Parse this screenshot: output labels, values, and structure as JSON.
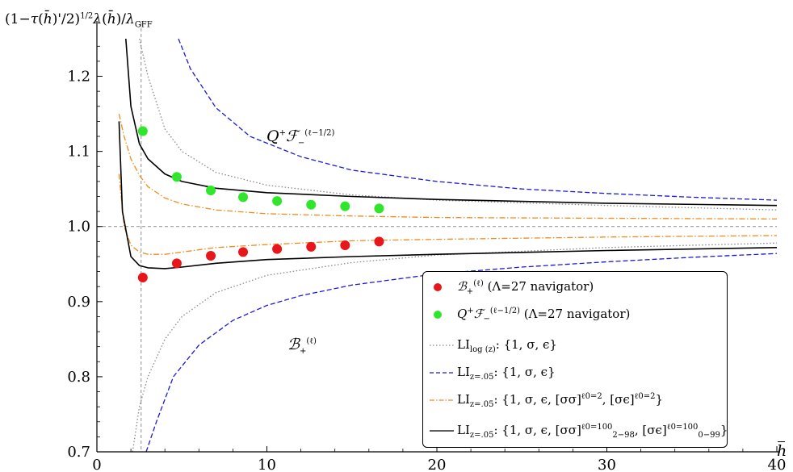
{
  "chart_data": {
    "type": "line",
    "xlabel": "h̄",
    "ylabel": "(1−τ(h̄)'/2)^1/2 λ(h̄)/λ_GFF",
    "xlim": [
      0,
      40
    ],
    "ylim": [
      0.7,
      1.25
    ],
    "x_ticks": [
      "0",
      "10",
      "20",
      "30",
      "40"
    ],
    "y_ticks": [
      "0.7",
      "0.8",
      "0.9",
      "1.0",
      "1.1",
      "1.2"
    ],
    "reference_lines": {
      "horizontal_y": 1.0,
      "vertical_x": 2.6
    },
    "legend_position": "bottom-right",
    "annotations": [
      {
        "text": "Q⁺ℱ₋^(ℓ−1/2)",
        "x": 12.5,
        "y": 1.105
      },
      {
        "text": "ℬ₊^(ℓ)",
        "x": 12.5,
        "y": 0.835
      }
    ],
    "series": [
      {
        "name": "ℬ₊^(ℓ) (Λ=27 navigator)",
        "style": "points",
        "color": "#e8151b",
        "x": [
          2.7,
          4.7,
          6.7,
          8.6,
          10.6,
          12.6,
          14.6,
          16.6
        ],
        "y": [
          0.932,
          0.951,
          0.961,
          0.966,
          0.97,
          0.973,
          0.975,
          0.98
        ]
      },
      {
        "name": "Q⁺ℱ₋^(ℓ−1/2) (Λ=27 navigator)",
        "style": "points",
        "color": "#2fe62a",
        "x": [
          2.7,
          4.7,
          6.7,
          8.6,
          10.6,
          12.6,
          14.6,
          16.6
        ],
        "y": [
          1.127,
          1.066,
          1.048,
          1.039,
          1.034,
          1.029,
          1.027,
          1.024
        ]
      },
      {
        "name": "LI_log(z): {1, σ, ϵ}",
        "style": "dotted",
        "color": "#888888",
        "upper": {
          "x": [
            2.5,
            3,
            4,
            5,
            7,
            10,
            15,
            20,
            30,
            40
          ],
          "y": [
            1.25,
            1.2,
            1.13,
            1.1,
            1.072,
            1.055,
            1.042,
            1.035,
            1.028,
            1.022
          ]
        },
        "lower": {
          "x": [
            2.1,
            2.5,
            3,
            4,
            5,
            7,
            10,
            15,
            20,
            30,
            40
          ],
          "y": [
            0.7,
            0.76,
            0.8,
            0.85,
            0.88,
            0.912,
            0.935,
            0.952,
            0.962,
            0.972,
            0.978
          ]
        }
      },
      {
        "name": "LI_z=.05: {1, σ, ϵ}",
        "style": "dashed",
        "color": "#1a1ad6",
        "upper": {
          "x": [
            4.8,
            5.5,
            7,
            9,
            12,
            15,
            20,
            25,
            30,
            35,
            40
          ],
          "y": [
            1.25,
            1.21,
            1.158,
            1.12,
            1.093,
            1.075,
            1.06,
            1.05,
            1.044,
            1.039,
            1.035
          ]
        },
        "lower": {
          "x": [
            2.9,
            3.5,
            4.5,
            6,
            8,
            10,
            12,
            15,
            20,
            25,
            30,
            35,
            40
          ],
          "y": [
            0.7,
            0.74,
            0.8,
            0.842,
            0.875,
            0.895,
            0.908,
            0.922,
            0.937,
            0.946,
            0.953,
            0.959,
            0.964
          ]
        }
      },
      {
        "name": "LI_z=.05: {1, σ, ϵ, [σσ]^ℓ0=2, [σϵ]^ℓ0=2}",
        "style": "dashdot",
        "color": "#f08c1c",
        "upper": {
          "x": [
            1.3,
            1.6,
            2,
            2.5,
            3,
            4,
            5,
            7,
            10,
            15,
            20,
            30,
            40
          ],
          "y": [
            1.15,
            1.12,
            1.09,
            1.068,
            1.053,
            1.038,
            1.03,
            1.022,
            1.017,
            1.014,
            1.012,
            1.011,
            1.01
          ]
        },
        "lower": {
          "x": [
            1.3,
            1.6,
            2,
            2.5,
            3,
            4,
            5,
            7,
            10,
            15,
            20,
            30,
            40
          ],
          "y": [
            1.07,
            1.0,
            0.975,
            0.966,
            0.963,
            0.963,
            0.966,
            0.972,
            0.976,
            0.981,
            0.983,
            0.986,
            0.988
          ]
        }
      },
      {
        "name": "LI_z=.05: {1, σ, ϵ, [σσ]^ℓ0=100_2−98, [σϵ]^ℓ0=100_0−99}",
        "style": "solid",
        "color": "#000000",
        "upper": {
          "x": [
            1.7,
            2,
            2.5,
            3,
            4,
            5,
            7,
            10,
            15,
            20,
            30,
            40
          ],
          "y": [
            1.25,
            1.16,
            1.11,
            1.09,
            1.07,
            1.06,
            1.051,
            1.045,
            1.04,
            1.036,
            1.031,
            1.028
          ]
        },
        "lower": {
          "x": [
            1.3,
            1.5,
            2,
            2.5,
            3,
            4,
            5,
            7,
            10,
            15,
            20,
            30,
            40
          ],
          "y": [
            1.14,
            1.02,
            0.96,
            0.948,
            0.945,
            0.944,
            0.946,
            0.951,
            0.956,
            0.96,
            0.963,
            0.968,
            0.972
          ]
        }
      }
    ]
  },
  "legend": [
    {
      "label": "(Λ=27 navigator)"
    },
    {
      "label": "(Λ=27 navigator)"
    },
    {
      "label": ": {1, σ, ϵ}"
    },
    {
      "label": ": {1, σ, ϵ}"
    },
    {
      "label": ": {1, σ, ϵ, [σσ]"
    },
    {
      "label": ": {1, σ, ϵ, [σσ]"
    }
  ]
}
